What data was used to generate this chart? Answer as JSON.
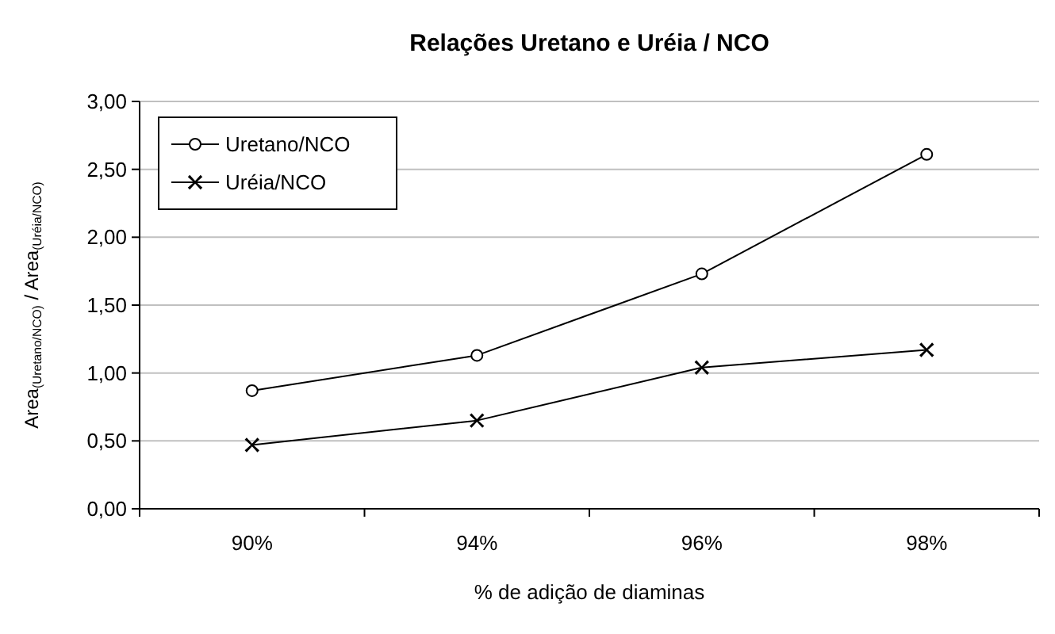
{
  "chart_data": {
    "type": "line",
    "title": "Relações Uretano e Uréia / NCO",
    "xlabel": "% de adição de diaminas",
    "ylabel": "Area$_{(Uretano/NCO)}$ / Area$_{(Uréia/NCO)}$",
    "categories": [
      "90%",
      "94%",
      "96%",
      "98%"
    ],
    "series": [
      {
        "name": "Uretano/NCO",
        "color": "#000000",
        "marker": "circle",
        "values": [
          0.87,
          1.13,
          1.73,
          2.61
        ]
      },
      {
        "name": "Uréia/NCO",
        "color": "#000000",
        "marker": "cross",
        "values": [
          0.47,
          0.65,
          1.04,
          1.17
        ]
      }
    ],
    "ylim": [
      0,
      3
    ],
    "yticks": [
      {
        "value": 0,
        "label": "0,00"
      },
      {
        "value": 0.5,
        "label": "0,50"
      },
      {
        "value": 1,
        "label": "1,00"
      },
      {
        "value": 1.5,
        "label": "1,50"
      },
      {
        "value": 2,
        "label": "2,00"
      },
      {
        "value": 2.5,
        "label": "2,50"
      },
      {
        "value": 3,
        "label": "3,00"
      }
    ],
    "grid": "y",
    "legend": "top left",
    "line_style": "solid"
  }
}
